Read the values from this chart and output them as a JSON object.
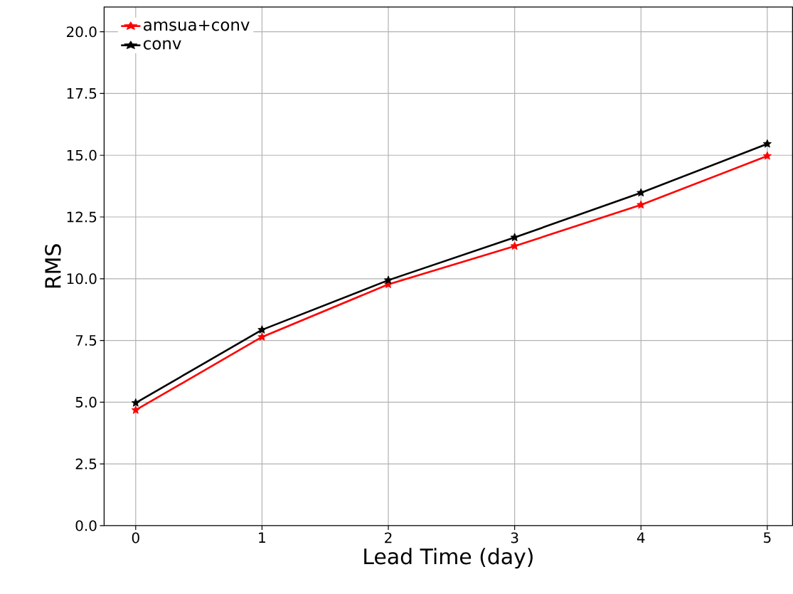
{
  "chart_data": {
    "type": "line",
    "xlabel": "Lead Time (day)",
    "ylabel": "RMS",
    "x": [
      0,
      1,
      2,
      3,
      4,
      5
    ],
    "series": [
      {
        "name": "amsua+conv",
        "color": "#ff0000",
        "values": [
          4.68,
          7.64,
          9.77,
          11.32,
          12.99,
          14.97
        ]
      },
      {
        "name": "conv",
        "color": "#000000",
        "values": [
          4.97,
          7.93,
          9.94,
          11.67,
          13.48,
          15.46
        ]
      }
    ],
    "xlim": [
      -0.25,
      5.2
    ],
    "ylim": [
      0,
      21
    ],
    "xticks": [
      0,
      1,
      2,
      3,
      4,
      5
    ],
    "yticks": [
      {
        "value": 0,
        "label": "0.0"
      },
      {
        "value": 2.5,
        "label": "2.5"
      },
      {
        "value": 5,
        "label": "5.0"
      },
      {
        "value": 7.5,
        "label": "7.5"
      },
      {
        "value": 10,
        "label": "10.0"
      },
      {
        "value": 12.5,
        "label": "12.5"
      },
      {
        "value": 15,
        "label": "15.0"
      },
      {
        "value": 17.5,
        "label": "17.5"
      },
      {
        "value": 20,
        "label": "20.0"
      }
    ],
    "grid": true,
    "legend": "top left",
    "marker": "star",
    "line_style": "solid"
  }
}
